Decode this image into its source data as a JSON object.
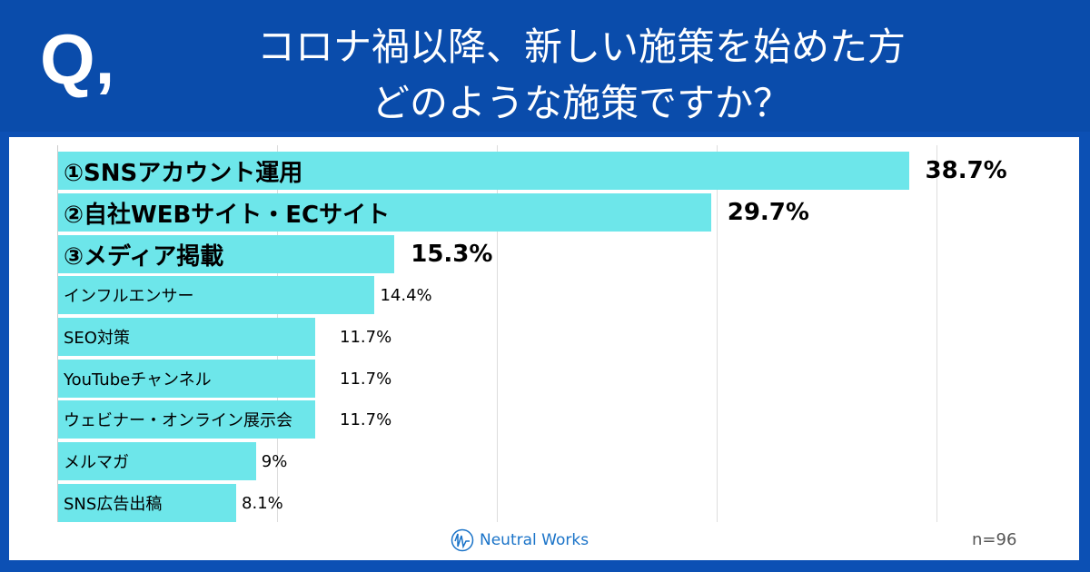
{
  "header": {
    "q_mark": "Q,",
    "title_line1": "コロナ禍以降、新しい施策を始めた方",
    "title_line2": "どのような施策ですか？"
  },
  "chart_data": {
    "type": "bar",
    "orientation": "horizontal",
    "unit": "%",
    "xlim": [
      0,
      40
    ],
    "grid": true,
    "categories": [
      "①SNSアカウント運用",
      "②自社WEBサイト・ECサイト",
      "③メディア掲載",
      "インフルエンサー",
      "SEO対策",
      "YouTubeチャンネル",
      "ウェビナー・オンライン展示会",
      "メルマガ",
      "SNS広告出稿"
    ],
    "values": [
      38.7,
      29.7,
      15.3,
      14.4,
      11.7,
      11.7,
      11.7,
      9,
      8.1
    ],
    "value_labels": [
      "38.7%",
      "29.7%",
      "15.3%",
      "14.4%",
      "11.7%",
      "11.7%",
      "11.7%",
      "9%",
      "8.1%"
    ],
    "bar_color": "#6de6ea"
  },
  "footer": {
    "logo_text": "Neutral Works",
    "sample": "n=96"
  }
}
